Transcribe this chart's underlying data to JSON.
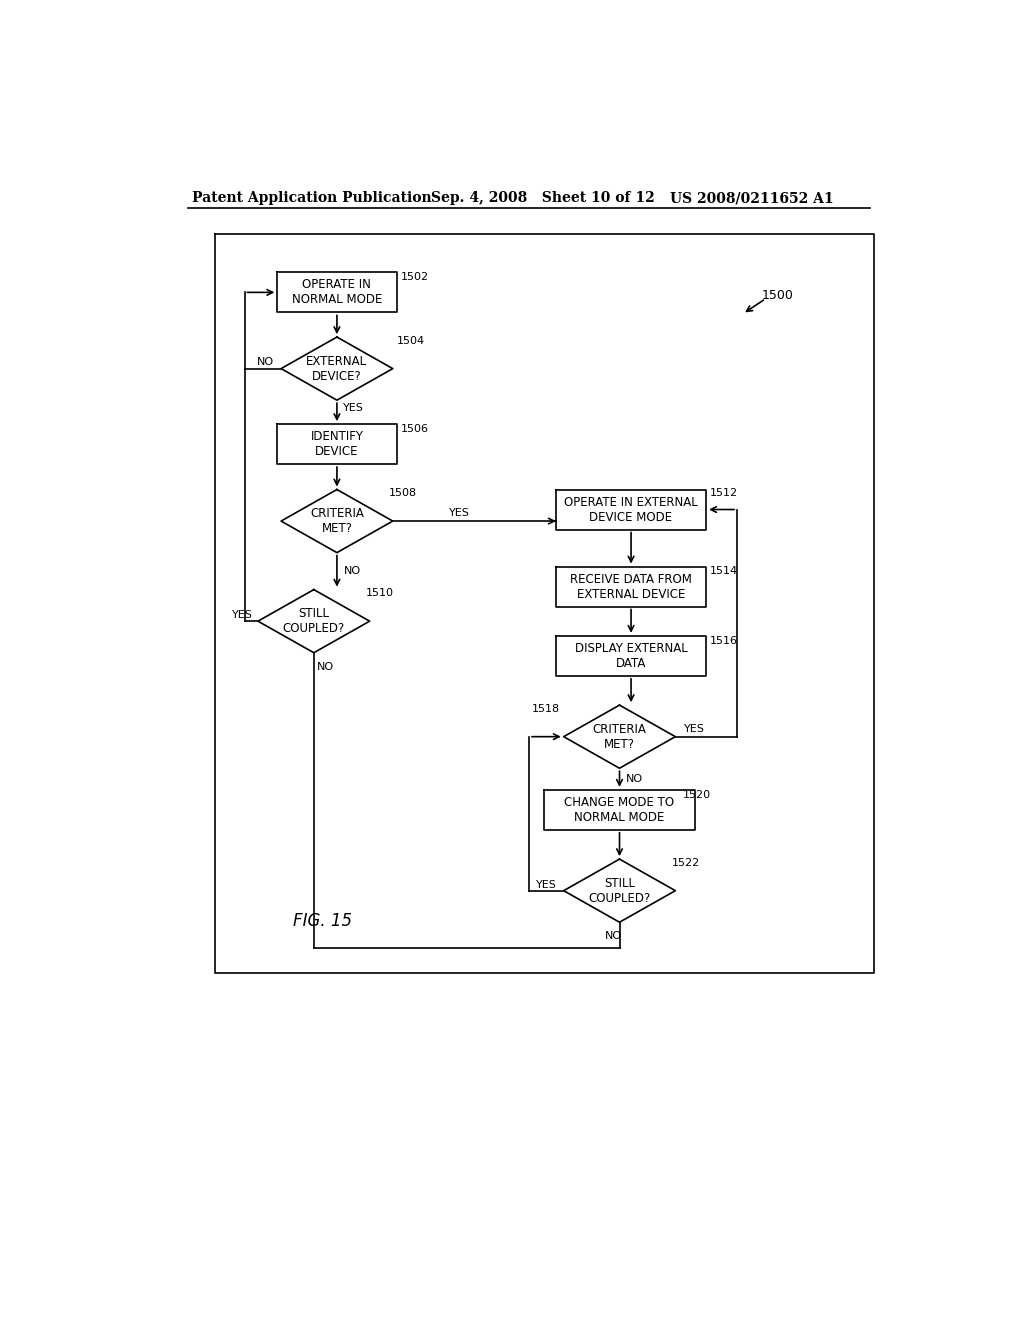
{
  "background_color": "#ffffff",
  "header_left": "Patent Application Publication",
  "header_mid": "Sep. 4, 2008   Sheet 10 of 12",
  "header_right": "US 2008/0211652 A1",
  "fig_label": "FIG. 15",
  "diagram_ref": "1500"
}
